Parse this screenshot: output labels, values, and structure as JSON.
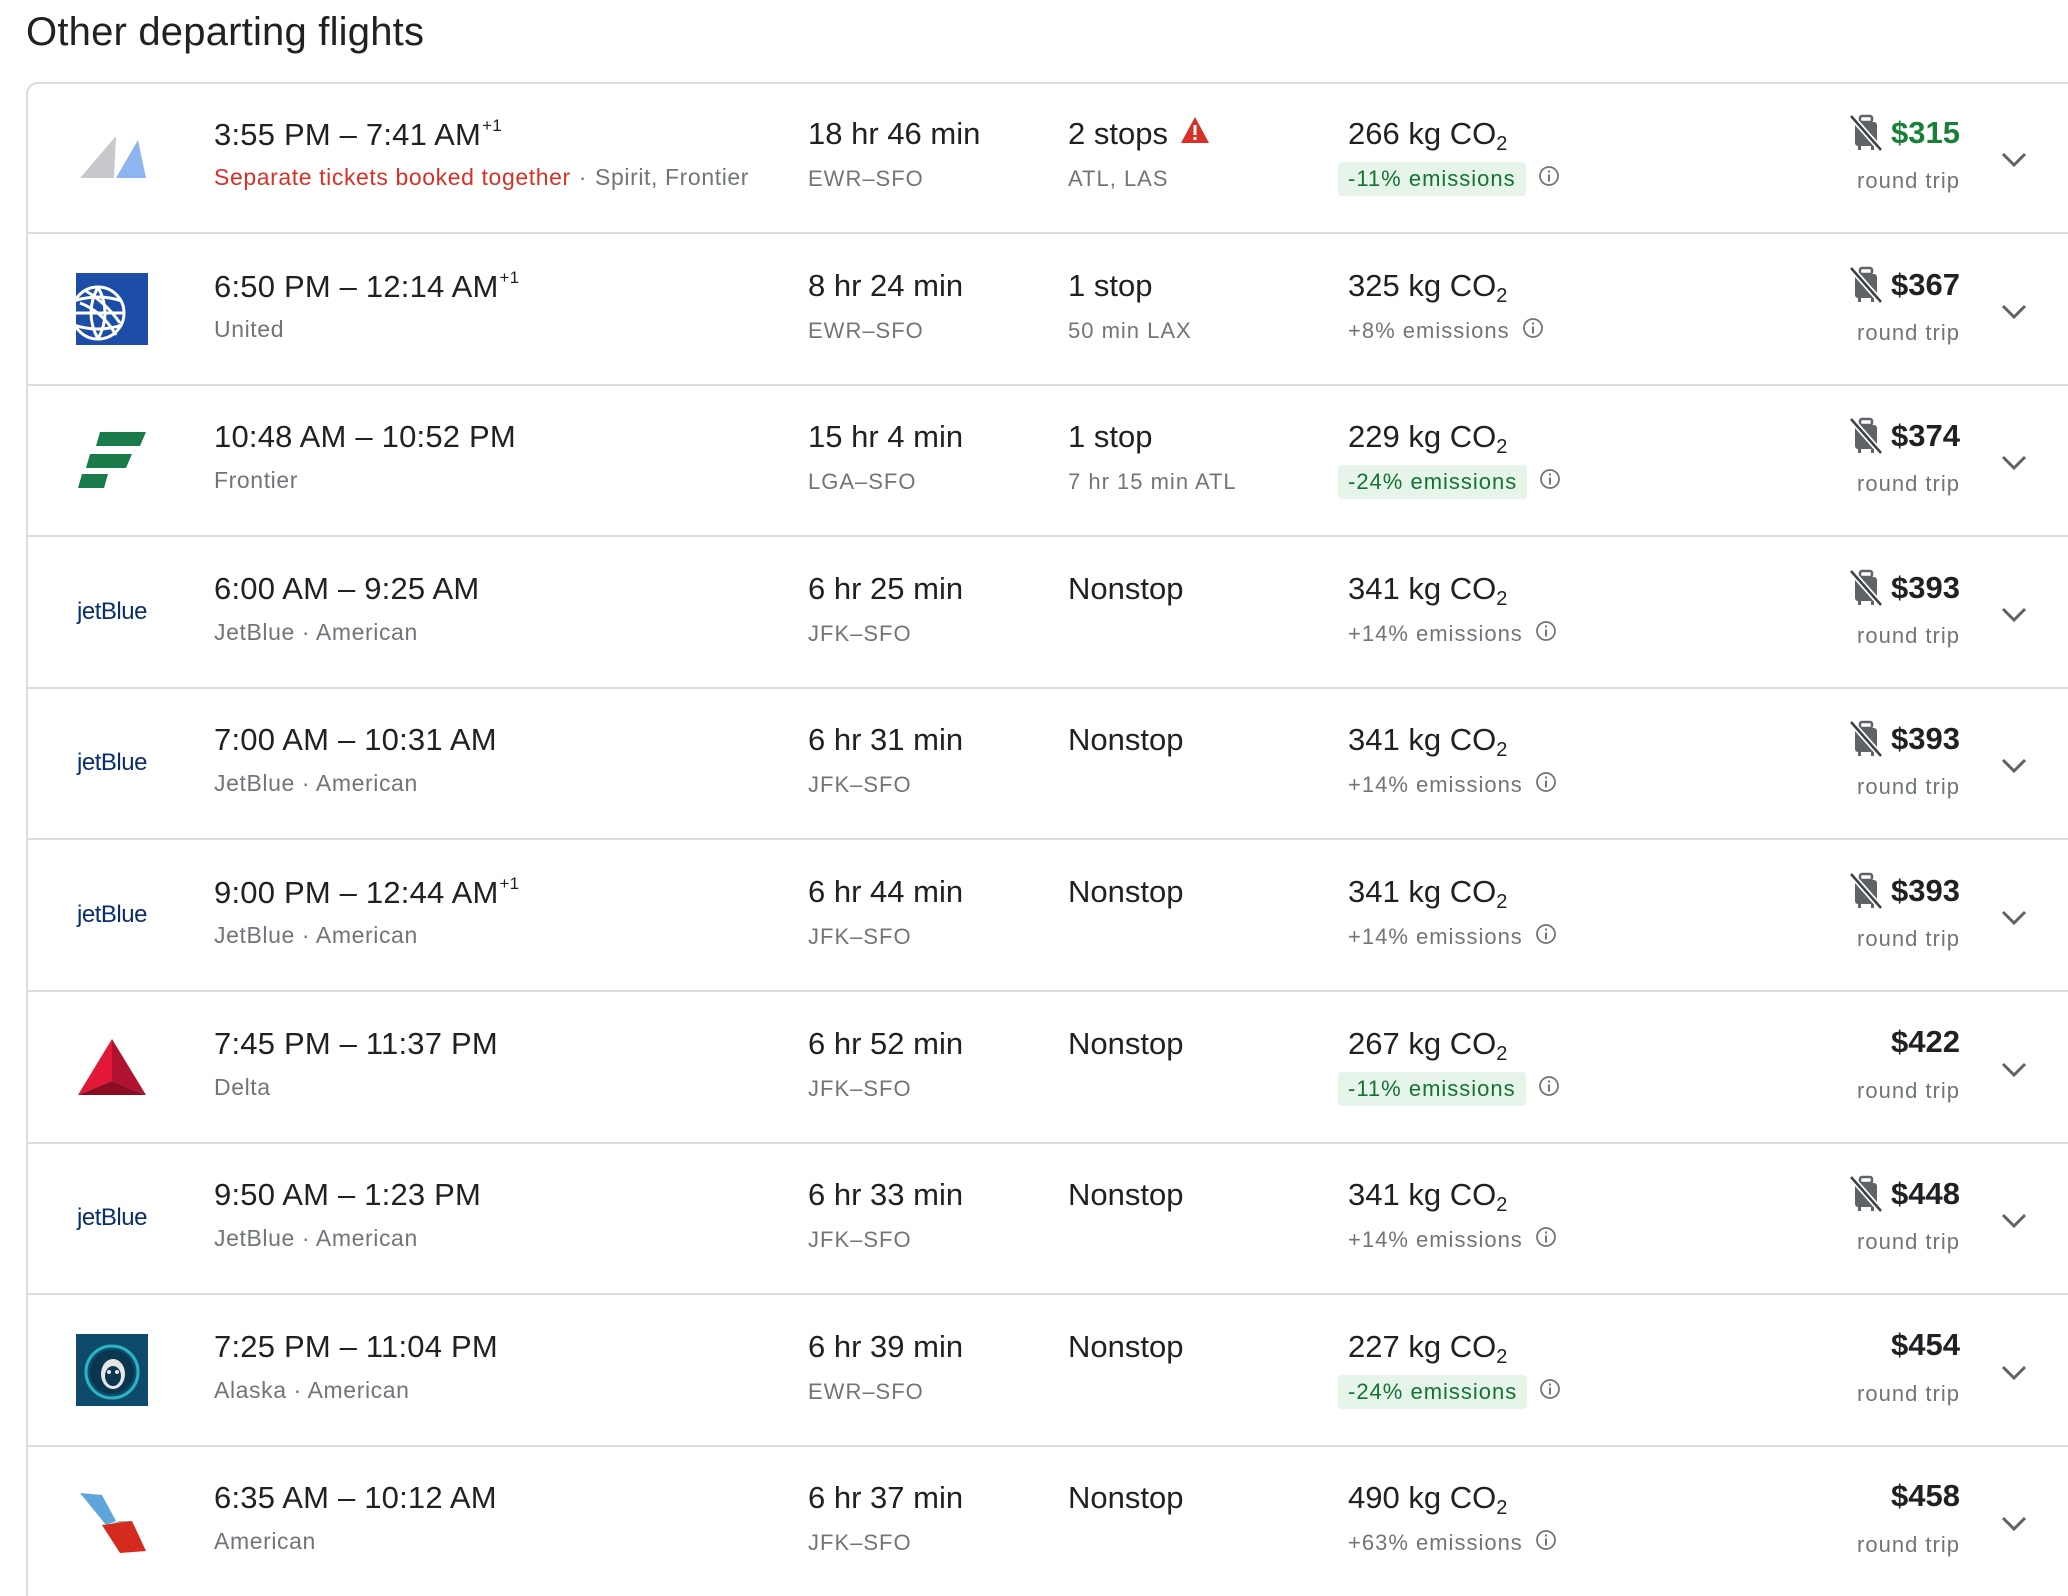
{
  "heading": "Other departing flights",
  "flights": [
    {
      "airline_logo": "spirit-frontier-logo",
      "times": "3:55 PM – 7:41 AM",
      "day_offset": "+1",
      "warning_text": "Separate tickets booked together",
      "airlines": "Spirit, Frontier",
      "duration": "18 hr 46 min",
      "route": "EWR–SFO",
      "stops": "2 stops",
      "stops_warning": true,
      "layover": "ATL, LAS",
      "co2": "266 kg CO",
      "emissions": "-11% emissions",
      "emissions_low": true,
      "price": "$315",
      "price_green": true,
      "no_carry_on": true,
      "price_note": "round trip"
    },
    {
      "airline_logo": "united-logo",
      "times": "6:50 PM – 12:14 AM",
      "day_offset": "+1",
      "airlines": "United",
      "duration": "8 hr 24 min",
      "route": "EWR–SFO",
      "stops": "1 stop",
      "layover": "50 min LAX",
      "co2": "325 kg CO",
      "emissions": "+8% emissions",
      "emissions_low": false,
      "price": "$367",
      "no_carry_on": true,
      "price_note": "round trip"
    },
    {
      "airline_logo": "frontier-logo",
      "times": "10:48 AM – 10:52 PM",
      "airlines": "Frontier",
      "duration": "15 hr 4 min",
      "route": "LGA–SFO",
      "stops": "1 stop",
      "layover": "7 hr 15 min ATL",
      "co2": "229 kg CO",
      "emissions": "-24% emissions",
      "emissions_low": true,
      "price": "$374",
      "no_carry_on": true,
      "price_note": "round trip"
    },
    {
      "airline_logo": "jetblue-logo",
      "times": "6:00 AM – 9:25 AM",
      "airlines": "JetBlue · American",
      "duration": "6 hr 25 min",
      "route": "JFK–SFO",
      "stops": "Nonstop",
      "layover": "",
      "co2": "341 kg CO",
      "emissions": "+14% emissions",
      "emissions_low": false,
      "price": "$393",
      "no_carry_on": true,
      "price_note": "round trip"
    },
    {
      "airline_logo": "jetblue-logo",
      "times": "7:00 AM – 10:31 AM",
      "airlines": "JetBlue · American",
      "duration": "6 hr 31 min",
      "route": "JFK–SFO",
      "stops": "Nonstop",
      "layover": "",
      "co2": "341 kg CO",
      "emissions": "+14% emissions",
      "emissions_low": false,
      "price": "$393",
      "no_carry_on": true,
      "price_note": "round trip"
    },
    {
      "airline_logo": "jetblue-logo",
      "times": "9:00 PM – 12:44 AM",
      "day_offset": "+1",
      "airlines": "JetBlue · American",
      "duration": "6 hr 44 min",
      "route": "JFK–SFO",
      "stops": "Nonstop",
      "layover": "",
      "co2": "341 kg CO",
      "emissions": "+14% emissions",
      "emissions_low": false,
      "price": "$393",
      "no_carry_on": true,
      "price_note": "round trip"
    },
    {
      "airline_logo": "delta-logo",
      "times": "7:45 PM – 11:37 PM",
      "airlines": "Delta",
      "duration": "6 hr 52 min",
      "route": "JFK–SFO",
      "stops": "Nonstop",
      "layover": "",
      "co2": "267 kg CO",
      "emissions": "-11% emissions",
      "emissions_low": true,
      "price": "$422",
      "no_carry_on": false,
      "price_note": "round trip"
    },
    {
      "airline_logo": "jetblue-logo",
      "times": "9:50 AM – 1:23 PM",
      "airlines": "JetBlue · American",
      "duration": "6 hr 33 min",
      "route": "JFK–SFO",
      "stops": "Nonstop",
      "layover": "",
      "co2": "341 kg CO",
      "emissions": "+14% emissions",
      "emissions_low": false,
      "price": "$448",
      "no_carry_on": true,
      "price_note": "round trip"
    },
    {
      "airline_logo": "alaska-logo",
      "times": "7:25 PM – 11:04 PM",
      "airlines": "Alaska · American",
      "duration": "6 hr 39 min",
      "route": "EWR–SFO",
      "stops": "Nonstop",
      "layover": "",
      "co2": "227 kg CO",
      "emissions": "-24% emissions",
      "emissions_low": true,
      "price": "$454",
      "no_carry_on": false,
      "price_note": "round trip"
    },
    {
      "airline_logo": "american-logo",
      "times": "6:35 AM – 10:12 AM",
      "airlines": "American",
      "duration": "6 hr 37 min",
      "route": "JFK–SFO",
      "stops": "Nonstop",
      "layover": "",
      "co2": "490 kg CO",
      "emissions": "+63% emissions",
      "emissions_low": false,
      "price": "$458",
      "no_carry_on": false,
      "price_note": "round trip"
    }
  ],
  "jetblue_wordmark": "jetBlue",
  "co2_subscript": "2",
  "colors": {
    "warning_red": "#d93025",
    "price_green": "#188038",
    "emissions_green_bg": "#e6f4ea",
    "emissions_green_text": "#137333",
    "divider": "#dadce0",
    "secondary_text": "#70757a"
  }
}
